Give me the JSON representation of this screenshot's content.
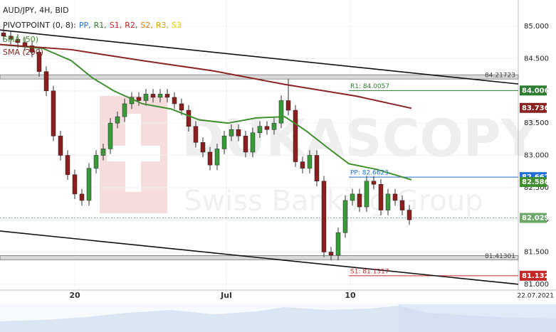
{
  "chart_data": {
    "type": "candlestick",
    "title": "AUD/JPY, 4H, BID",
    "indicator": "PIVOTPOINT (0, 8):",
    "pivot_names": [
      {
        "text": "PP,",
        "color": "#1e6fd9"
      },
      {
        "text": "R1,",
        "color": "#2e7d32"
      },
      {
        "text": "S1,",
        "color": "#c62828"
      },
      {
        "text": "R2,",
        "color": "#b71c1c"
      },
      {
        "text": "S2,",
        "color": "#e67e00"
      },
      {
        "text": "R3,",
        "color": "#d4a000"
      },
      {
        "text": "S3",
        "color": "#e6c800"
      }
    ],
    "watermark": "DUKASCOPY",
    "watermark_sub": "Swiss Banking Group",
    "date_label": "22.07.2021",
    "up_color": "#3a9a3a",
    "down_color": "#8b1e1e",
    "open": [
      84.9,
      84.85,
      84.8,
      84.75,
      84.7,
      84.6,
      84.3,
      84.0,
      83.3,
      83.0,
      82.7,
      82.4,
      82.3,
      82.8,
      83.0,
      83.1,
      83.5,
      83.6,
      83.8,
      83.9,
      83.85,
      83.95,
      83.9,
      83.95,
      83.9,
      83.8,
      83.7,
      83.45,
      83.2,
      83.05,
      82.85,
      83.1,
      83.3,
      83.4,
      83.3,
      83.05,
      83.35,
      83.45,
      83.4,
      83.5,
      83.85,
      83.7,
      82.9,
      82.8,
      83.0,
      82.6,
      81.5,
      81.45,
      81.8,
      82.3,
      82.4,
      82.2,
      82.6,
      82.55,
      82.15,
      82.4,
      82.3,
      82.15
    ],
    "high": [
      84.98,
      84.93,
      84.88,
      84.83,
      84.78,
      84.68,
      84.38,
      84.08,
      83.38,
      83.08,
      82.78,
      82.48,
      82.88,
      83.08,
      83.18,
      83.58,
      83.68,
      83.88,
      83.98,
      83.98,
      84.03,
      84.03,
      84.03,
      84.03,
      83.98,
      83.88,
      83.78,
      83.53,
      83.28,
      83.13,
      83.18,
      83.38,
      83.48,
      83.48,
      83.38,
      83.43,
      83.53,
      83.53,
      83.58,
      83.93,
      84.18,
      83.78,
      82.98,
      83.08,
      83.08,
      82.68,
      81.58,
      81.88,
      82.38,
      82.48,
      82.48,
      82.68,
      82.68,
      82.63,
      82.48,
      82.48,
      82.38,
      82.23
    ],
    "low": [
      84.77,
      84.72,
      84.67,
      84.62,
      84.52,
      84.22,
      83.92,
      83.22,
      82.92,
      82.62,
      82.32,
      82.22,
      82.22,
      82.72,
      82.92,
      83.02,
      83.42,
      83.52,
      83.72,
      83.77,
      83.77,
      83.82,
      83.82,
      83.82,
      83.72,
      83.62,
      83.37,
      83.12,
      82.97,
      82.77,
      82.77,
      83.02,
      83.22,
      83.22,
      82.97,
      82.97,
      83.27,
      83.32,
      83.32,
      83.42,
      83.62,
      82.82,
      82.72,
      82.72,
      82.52,
      81.42,
      81.37,
      81.37,
      81.72,
      82.22,
      82.12,
      82.12,
      82.47,
      82.07,
      82.07,
      82.22,
      82.07,
      81.92
    ],
    "close": [
      84.85,
      84.8,
      84.75,
      84.7,
      84.6,
      84.3,
      84.0,
      83.3,
      83.0,
      82.7,
      82.4,
      82.3,
      82.8,
      83.0,
      83.1,
      83.5,
      83.6,
      83.8,
      83.9,
      83.85,
      83.95,
      83.9,
      83.95,
      83.9,
      83.8,
      83.7,
      83.45,
      83.2,
      83.05,
      82.85,
      83.1,
      83.3,
      83.4,
      83.3,
      83.05,
      83.35,
      83.45,
      83.4,
      83.5,
      83.85,
      83.7,
      82.9,
      82.8,
      83.0,
      82.6,
      81.5,
      81.45,
      81.8,
      82.3,
      82.4,
      82.2,
      82.6,
      82.55,
      82.15,
      82.4,
      82.3,
      82.15,
      82.0
    ],
    "series": [
      {
        "name": "SMA (50)",
        "color": "#3f8f2f",
        "x": [
          -0.5,
          5.5,
          9.5,
          12.5,
          15.5,
          19.5,
          23.5,
          27.5,
          31.5,
          35.5,
          39.5,
          42.5,
          45.5,
          48.5,
          52.5,
          57.3
        ],
        "values": [
          84.72,
          84.66,
          84.47,
          84.2,
          84.0,
          83.8,
          83.72,
          83.55,
          83.5,
          83.58,
          83.6,
          83.38,
          83.12,
          82.87,
          82.78,
          82.62
        ]
      },
      {
        "name": "SMA (200)",
        "color": "#8b2323",
        "x": [
          -0.5,
          9.5,
          19.5,
          29.5,
          39.5,
          49.5,
          57.3
        ],
        "values": [
          84.72,
          84.64,
          84.47,
          84.31,
          84.1,
          83.92,
          83.73
        ]
      }
    ],
    "trendlines": [
      {
        "x": [
          -0.5,
          72.3
        ],
        "values": [
          84.945,
          84.107
        ]
      },
      {
        "x": [
          -0.5,
          72.3
        ],
        "values": [
          81.826,
          81.0
        ]
      }
    ],
    "levels": [
      {
        "value": 84.21723,
        "label": "84.21723"
      },
      {
        "value": 81.41301,
        "label": "81.41301"
      }
    ],
    "pivots": [
      {
        "value": 84.0057,
        "label": "R1: 84.0057",
        "color": "#2e7d32",
        "x_start": 48.5
      },
      {
        "value": 82.6623,
        "label": "PP: 82.6623",
        "color": "#1e6fd9",
        "x_start": 48.5
      },
      {
        "value": 81.1317,
        "label": "S1: 81.1317",
        "color": "#c62828",
        "x_start": 48.5
      }
    ],
    "price_tags": [
      {
        "value": 84.006,
        "color": "#2e7d32"
      },
      {
        "value": 83.736,
        "color": "#8b2323"
      },
      {
        "value": 82.662,
        "color": "#1e6fd9"
      },
      {
        "value": 82.586,
        "color": "#3f8f2f"
      },
      {
        "value": 82.029,
        "color": "#6aa86a"
      },
      {
        "value": 81.132,
        "color": "#c62828"
      }
    ],
    "current": 82.029,
    "xlim": [
      -0.5,
      72.3
    ],
    "ylim": [
      80.91,
      85.41
    ],
    "yticks": [
      {
        "value": 85,
        "label": "85.000"
      },
      {
        "value": 84.5,
        "label": "84.500"
      },
      {
        "value": 84,
        "label": "84.000"
      },
      {
        "value": 83.5,
        "label": "83.500"
      },
      {
        "value": 83,
        "label": "83.000"
      },
      {
        "value": 82.5,
        "label": "82.500"
      },
      {
        "value": 82,
        "label": "82.000"
      },
      {
        "value": 81.5,
        "label": "81.500"
      },
      {
        "value": 81,
        "label": "81.000"
      }
    ],
    "xticks": [
      {
        "value": 10,
        "label": "20"
      },
      {
        "value": 31.3,
        "label": "Jul"
      },
      {
        "value": 48.7,
        "label": "10"
      }
    ],
    "grid": true
  }
}
